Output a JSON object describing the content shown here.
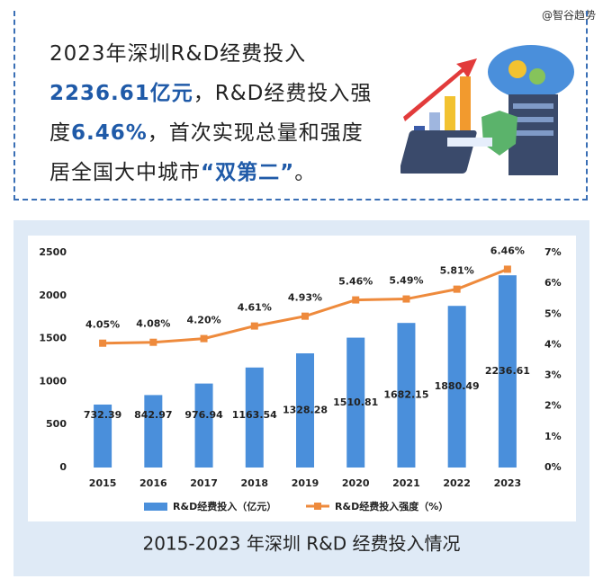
{
  "watermark": "@智谷趋势",
  "intro": [
    {
      "text": "2023年深圳R&D经费投入",
      "highlight": false
    },
    {
      "text": "2236.61亿元",
      "highlight": true
    },
    {
      "text": "，R&D经费投入强度",
      "highlight": false
    },
    {
      "text": "6.46%",
      "highlight": true
    },
    {
      "text": "，首次实现总量和强度居全国大中城市",
      "highlight": false
    },
    {
      "text": "“双第二”",
      "highlight": true
    },
    {
      "text": "。",
      "highlight": false
    }
  ],
  "chart_data": {
    "type": "bar_line",
    "title": "2015-2023 年深圳 R&D 经费投入情况",
    "categories": [
      "2015",
      "2016",
      "2017",
      "2018",
      "2019",
      "2020",
      "2021",
      "2022",
      "2023"
    ],
    "series": [
      {
        "name": "R&D经费投入（亿元）",
        "type": "bar",
        "color": "#4a8fdb",
        "values": [
          732.39,
          842.97,
          976.94,
          1163.54,
          1328.28,
          1510.81,
          1682.15,
          1880.49,
          2236.61
        ]
      },
      {
        "name": "R&D经费投入强度（%）",
        "type": "line",
        "axis": "y2",
        "color": "#ee8a3c",
        "values": [
          4.05,
          4.08,
          4.2,
          4.61,
          4.93,
          5.46,
          5.49,
          5.81,
          6.46
        ],
        "value_labels": [
          "4.05%",
          "4.08%",
          "4.20%",
          "4.61%",
          "4.93%",
          "5.46%",
          "5.49%",
          "5.81%",
          "6.46%"
        ]
      }
    ],
    "ylim": [
      0,
      2500
    ],
    "yticks": [
      0,
      500,
      1000,
      1500,
      2000,
      2500
    ],
    "y2lim": [
      0,
      7
    ],
    "y2ticks": [
      {
        "value": 0,
        "label": "0%"
      },
      {
        "value": 1,
        "label": "1%"
      },
      {
        "value": 2,
        "label": "2%"
      },
      {
        "value": 3,
        "label": "3%"
      },
      {
        "value": 4,
        "label": "4%"
      },
      {
        "value": 5,
        "label": "5%"
      },
      {
        "value": 6,
        "label": "6%"
      },
      {
        "value": 7,
        "label": "7%"
      }
    ],
    "grid": false,
    "legend": "bottom"
  }
}
